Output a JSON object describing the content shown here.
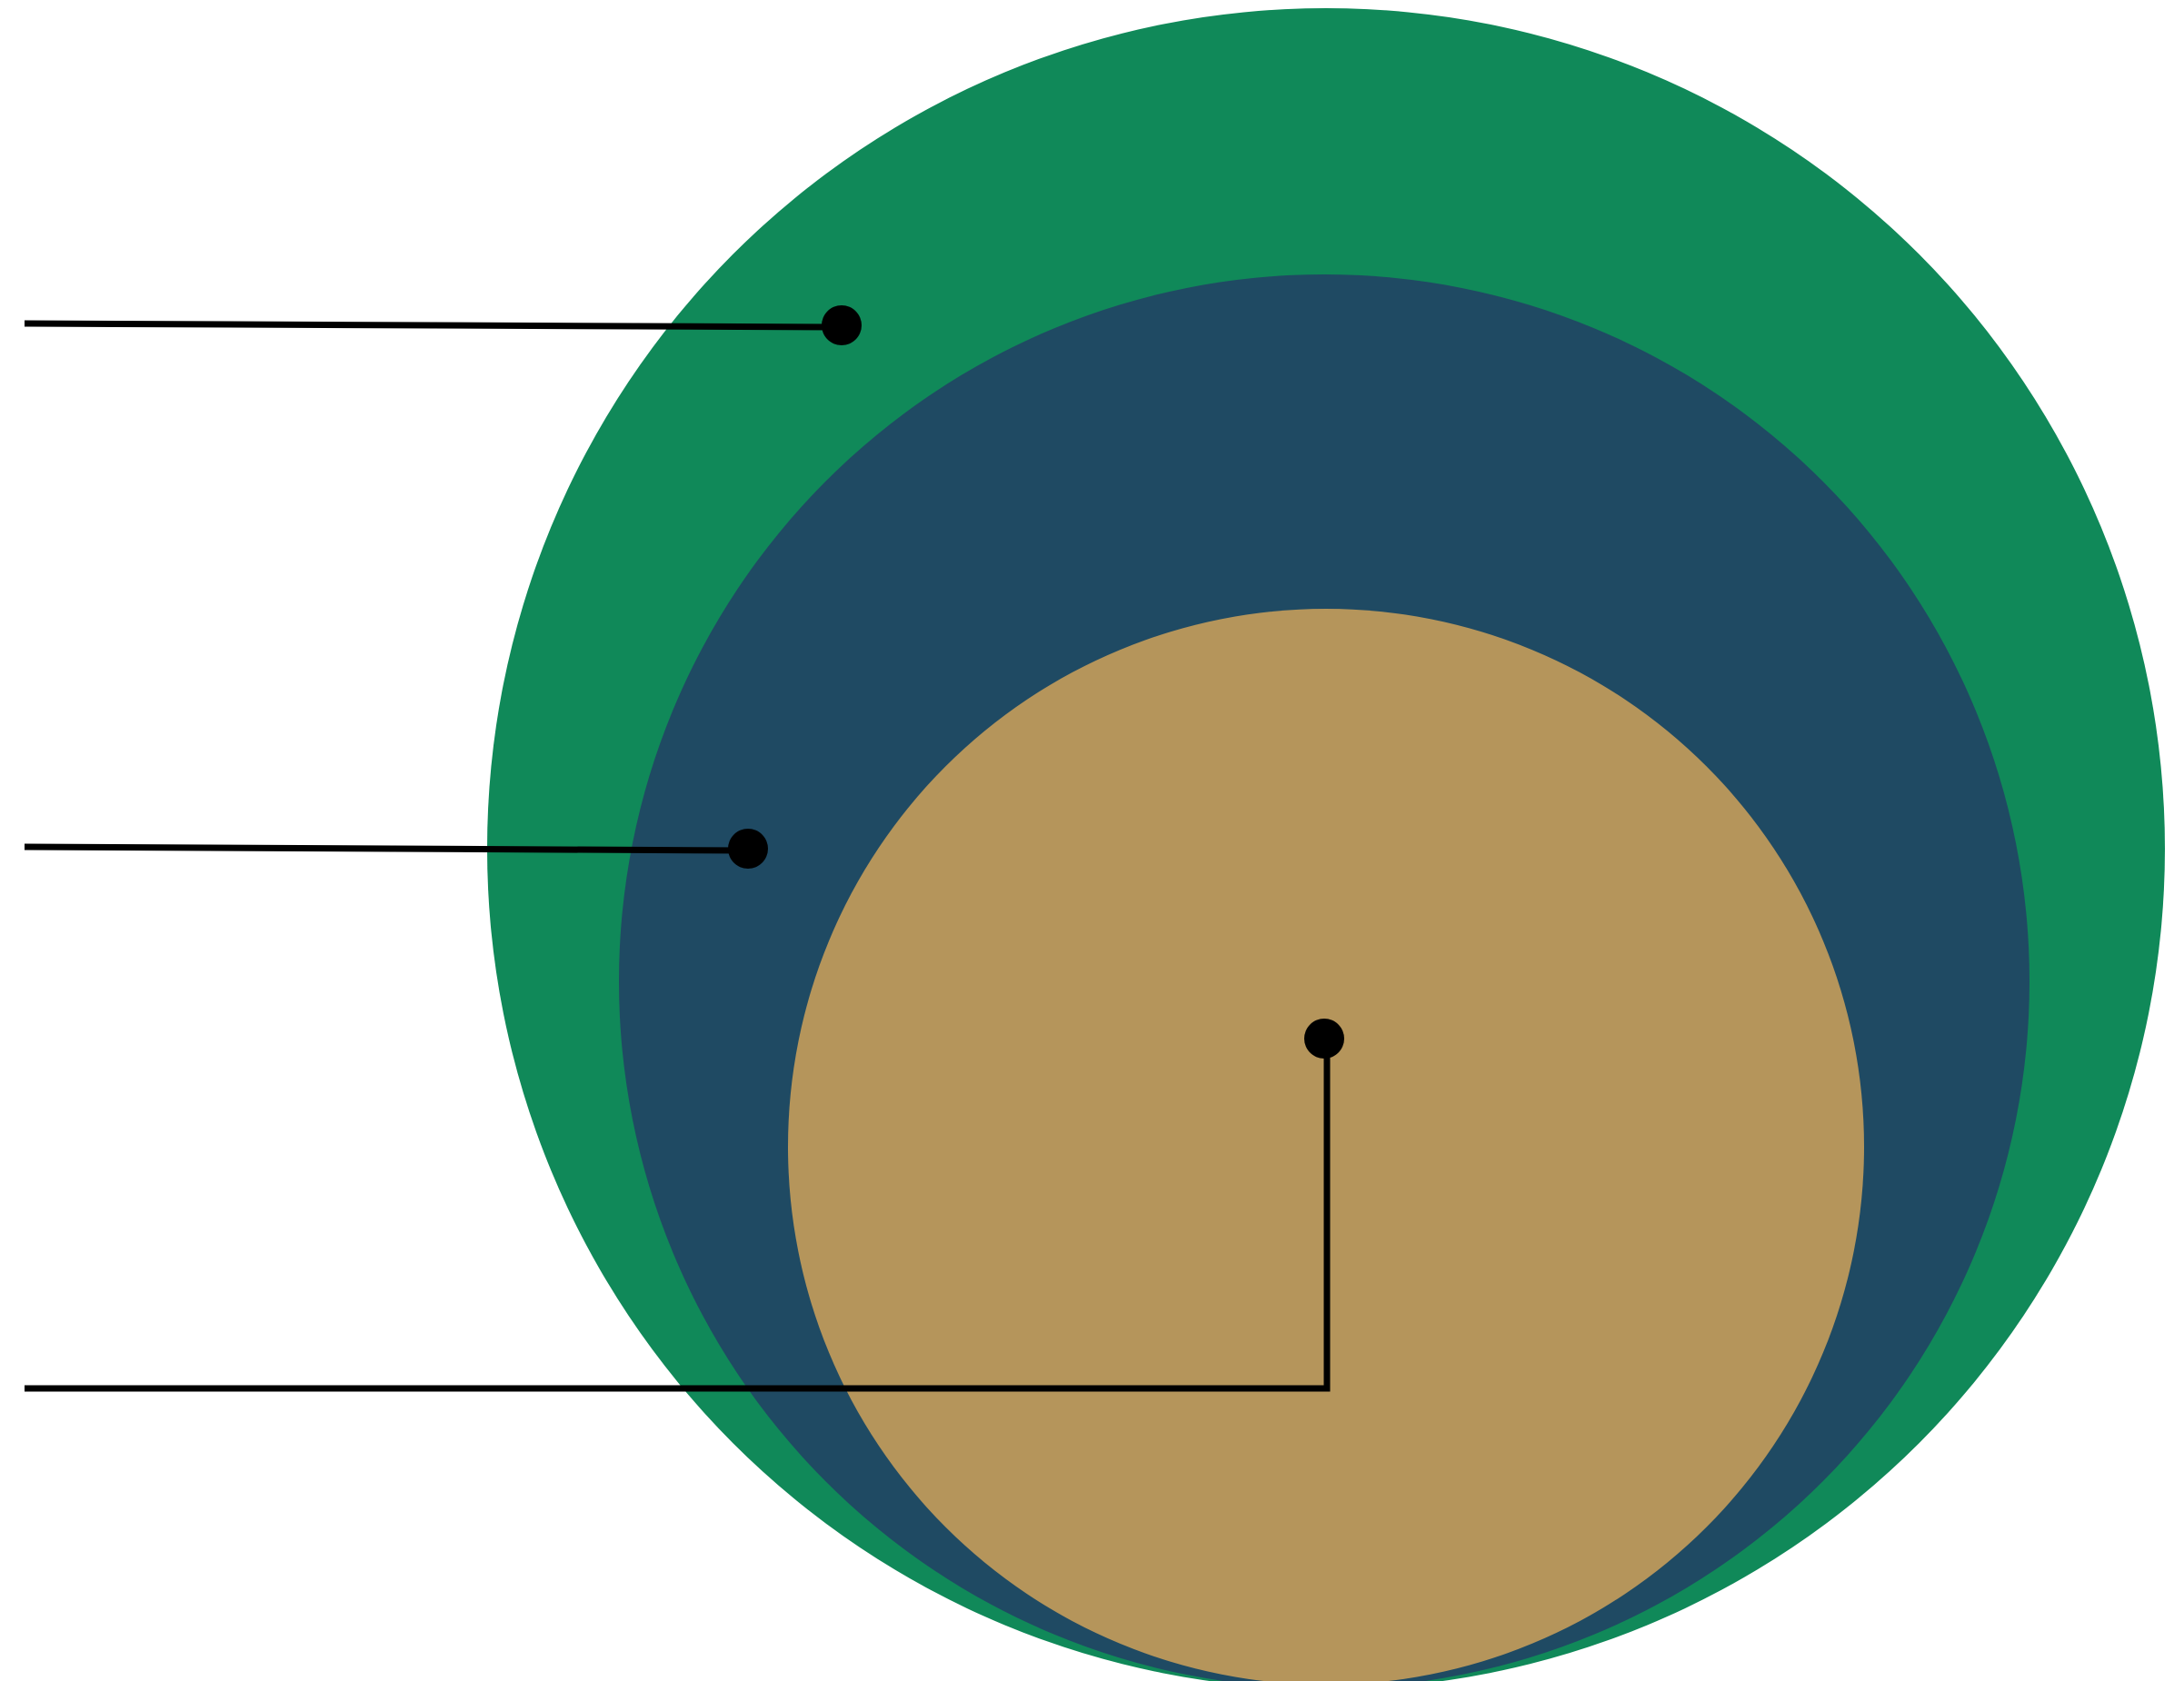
{
  "diagram": {
    "type": "nested-circles",
    "circles": [
      {
        "id": "outer",
        "color": "#108959"
      },
      {
        "id": "middle",
        "color": "#1F4A63"
      },
      {
        "id": "inner",
        "color": "#B5955B"
      }
    ],
    "callouts": [
      {
        "id": "outer",
        "label": ""
      },
      {
        "id": "middle",
        "label": ""
      },
      {
        "id": "inner",
        "label": ""
      }
    ],
    "leader_color": "#000000",
    "background": "#FFFFFF"
  }
}
